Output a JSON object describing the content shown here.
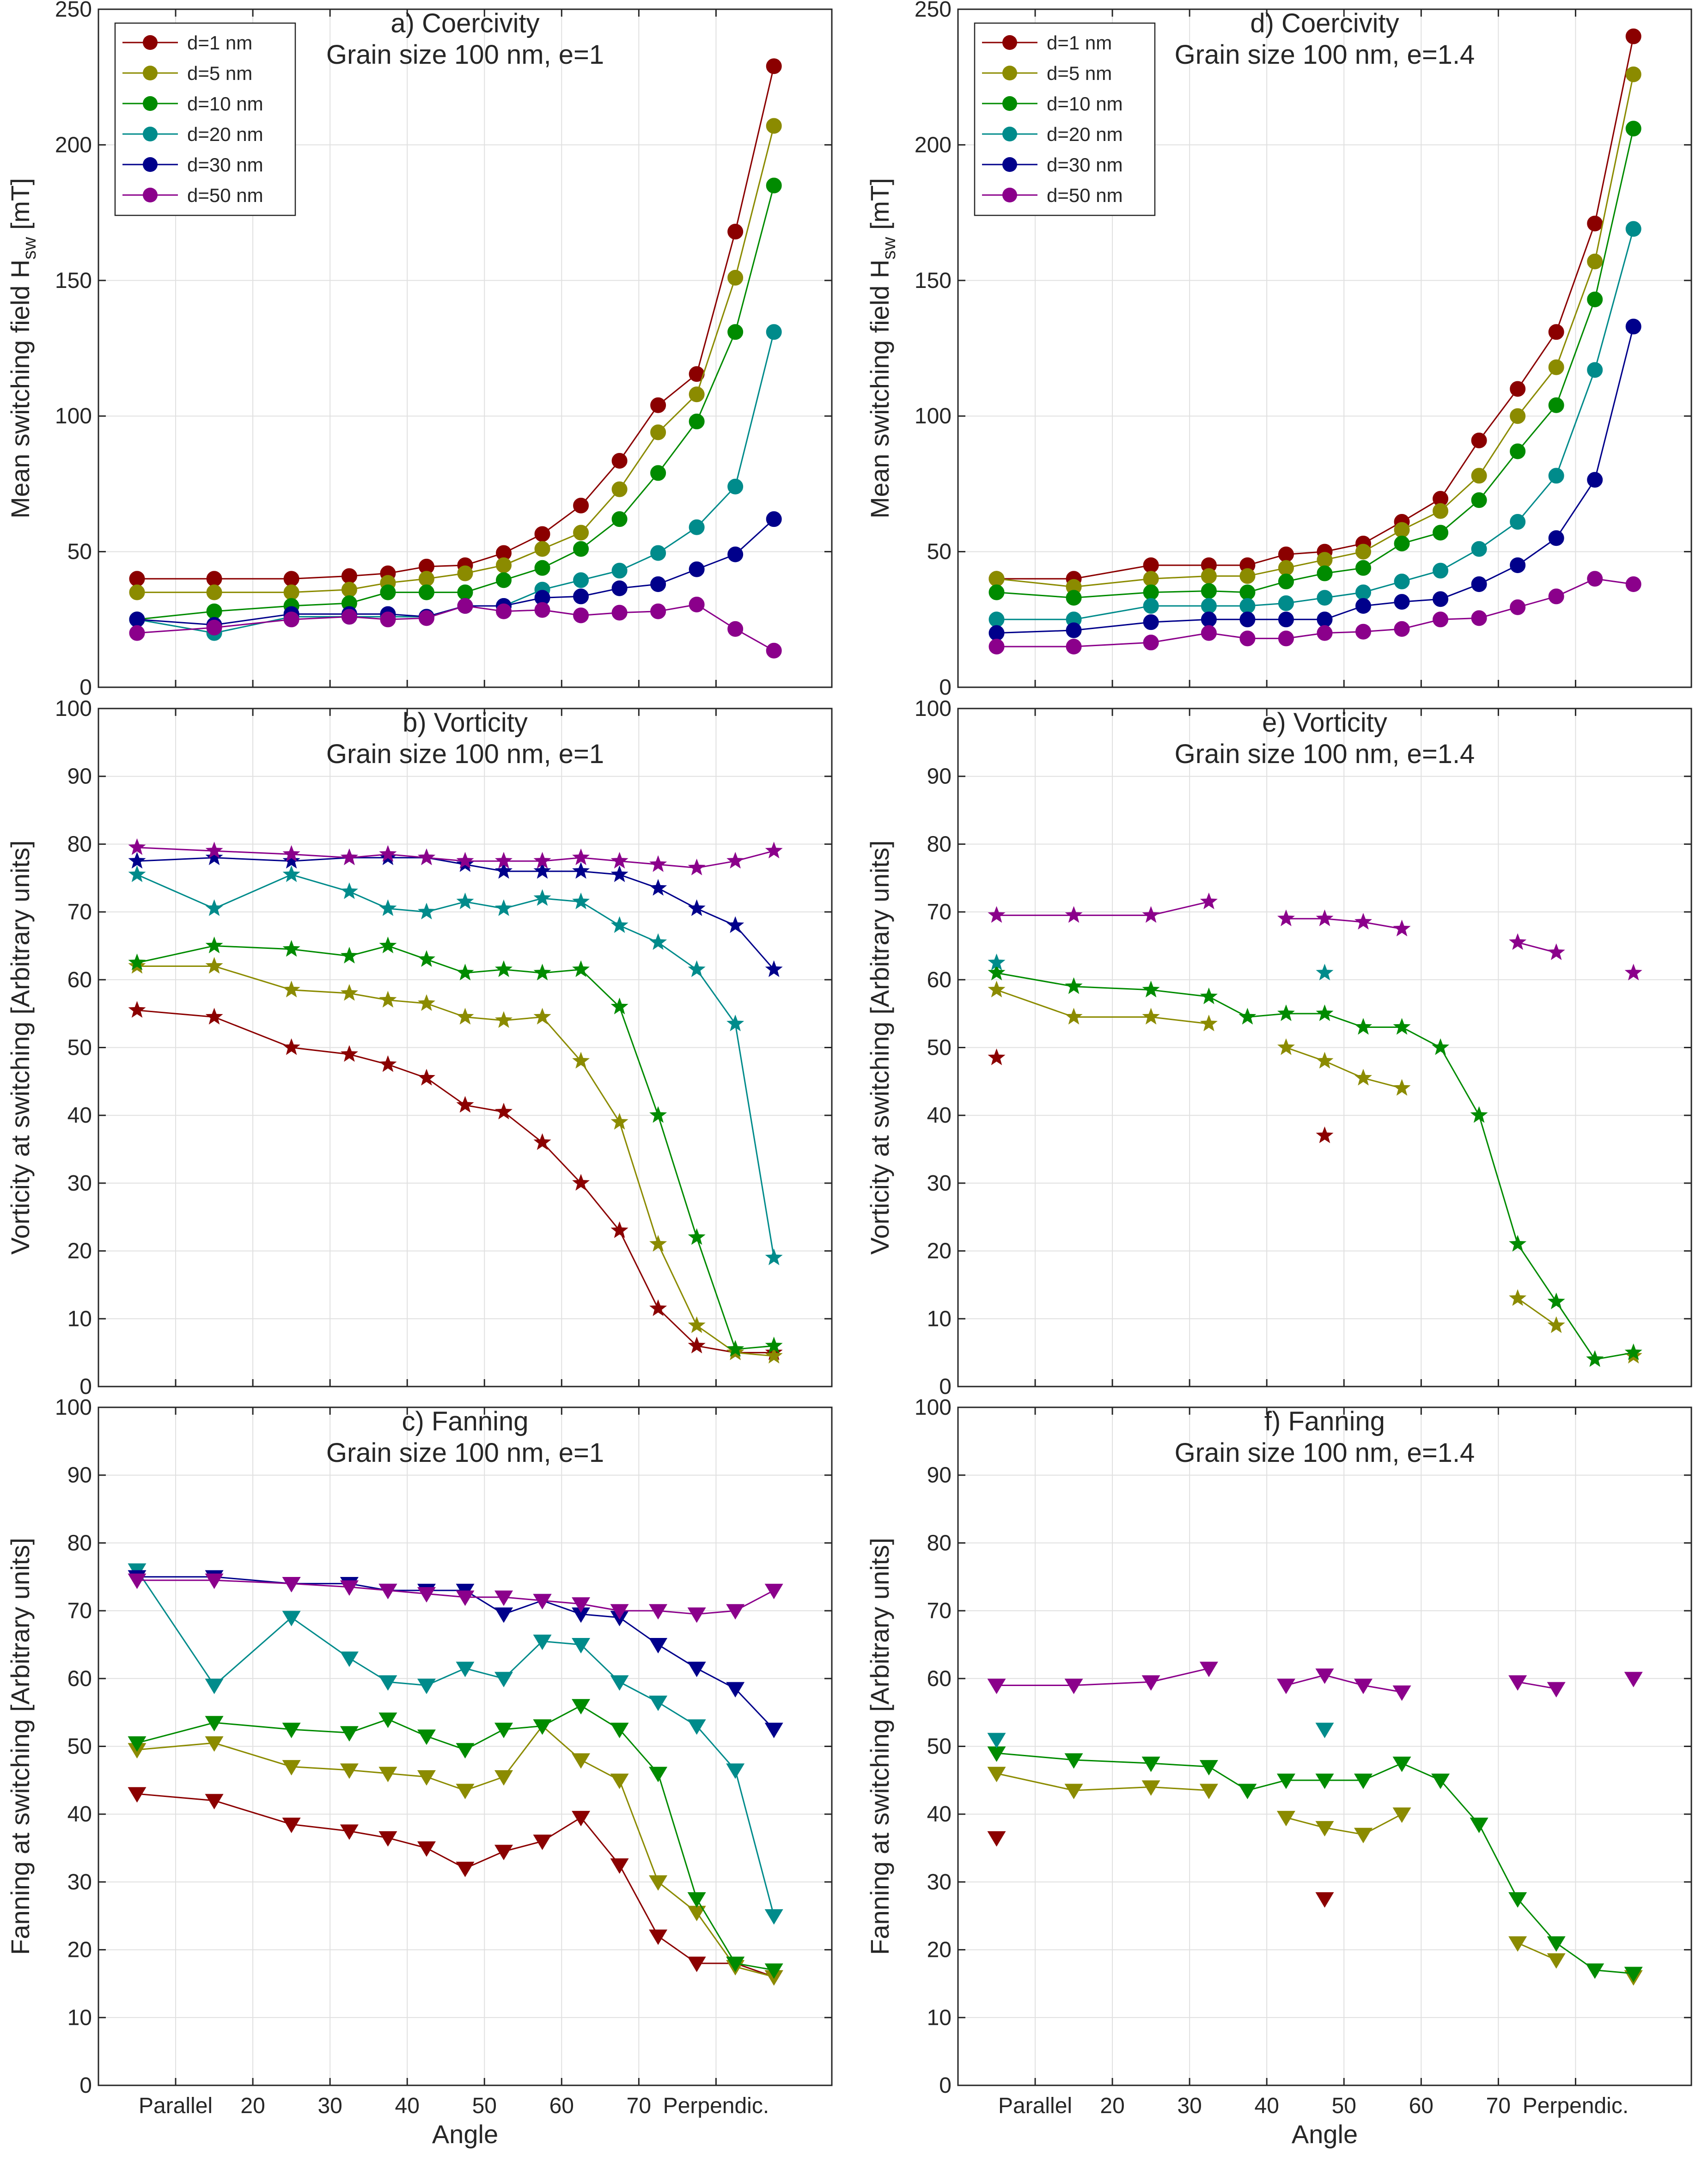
{
  "colors": {
    "d1": "#8b0000",
    "d5": "#8b8b00",
    "d10": "#008b00",
    "d20": "#008b8b",
    "d30": "#00008b",
    "d50": "#8b008b"
  },
  "x_tick_labels": [
    "Parallel",
    "20",
    "30",
    "40",
    "50",
    "60",
    "70",
    "Perpendic."
  ],
  "legend_entries": [
    "d=1 nm",
    "d=5 nm",
    "d=10 nm",
    "d=20 nm",
    "d=30 nm",
    "d=50 nm"
  ],
  "chart_data": [
    {
      "id": "a",
      "type": "line",
      "marker": "circle",
      "title": "a) Coercivity",
      "subtitle": "Grain size 100 nm, e=1",
      "xlabel": "",
      "ylabel": "Mean switching field H_sw [mT]",
      "ylim": [
        0,
        250
      ],
      "yticks": [
        0,
        50,
        100,
        150,
        200,
        250
      ],
      "xlim": [
        0,
        95
      ],
      "x_tick_values": [
        10,
        20,
        30,
        40,
        50,
        60,
        70,
        80
      ],
      "grid": true,
      "legend": "top-left",
      "x": [
        5,
        15,
        25,
        32.5,
        37.5,
        42.5,
        47.5,
        52.5,
        57.5,
        62.5,
        67.5,
        72.5,
        77.5,
        82.5,
        87.5
      ],
      "series": [
        {
          "name": "d=1 nm",
          "values": [
            40,
            40,
            40,
            41,
            42,
            44.5,
            45,
            49.5,
            56.5,
            67,
            83.5,
            104,
            115.5,
            168,
            229
          ]
        },
        {
          "name": "d=5 nm",
          "values": [
            35,
            35,
            35,
            36,
            38.5,
            40,
            42,
            45,
            51,
            57,
            73,
            94,
            108,
            151,
            207
          ]
        },
        {
          "name": "d=10 nm",
          "values": [
            25,
            28,
            30,
            31,
            35,
            35,
            35,
            39.5,
            44,
            51,
            62,
            79,
            98,
            131,
            185
          ]
        },
        {
          "name": "d=20 nm",
          "values": [
            25,
            20,
            26,
            26,
            26,
            26,
            30,
            30,
            36,
            39.5,
            43,
            49.5,
            59,
            74,
            131
          ]
        },
        {
          "name": "d=30 nm",
          "values": [
            25,
            23,
            27,
            27,
            27,
            26,
            30,
            30,
            33,
            33.5,
            36.5,
            38,
            43.5,
            49,
            62
          ]
        },
        {
          "name": "d=50 nm",
          "values": [
            20,
            22,
            25,
            26,
            25,
            25.5,
            30,
            28,
            28.5,
            26.5,
            27.5,
            28,
            30.5,
            21.5,
            13.5
          ]
        }
      ]
    },
    {
      "id": "d",
      "type": "line",
      "marker": "circle",
      "title": "d) Coercivity",
      "subtitle": "Grain size 100 nm, e=1.4",
      "xlabel": "",
      "ylabel": "Mean switching field H_sw [mT]",
      "ylim": [
        0,
        250
      ],
      "yticks": [
        0,
        50,
        100,
        150,
        200,
        250
      ],
      "xlim": [
        0,
        95
      ],
      "x_tick_values": [
        10,
        20,
        30,
        40,
        50,
        60,
        70,
        80
      ],
      "grid": true,
      "legend": "top-left",
      "x": [
        5,
        15,
        25,
        32.5,
        37.5,
        42.5,
        47.5,
        52.5,
        57.5,
        62.5,
        67.5,
        72.5,
        77.5,
        82.5,
        87.5
      ],
      "series": [
        {
          "name": "d=1 nm",
          "values": [
            40,
            40,
            45,
            45,
            45,
            49,
            50,
            53,
            61,
            69.5,
            91,
            110,
            131,
            171,
            240
          ]
        },
        {
          "name": "d=5 nm",
          "values": [
            40,
            37,
            40,
            41,
            41,
            44,
            47,
            50,
            58,
            65,
            78,
            100,
            118,
            157,
            226
          ]
        },
        {
          "name": "d=10 nm",
          "values": [
            35,
            33,
            35,
            35.5,
            35,
            39,
            42,
            44,
            53,
            57,
            69,
            87,
            104,
            143,
            206
          ]
        },
        {
          "name": "d=20 nm",
          "values": [
            25,
            25,
            30,
            30,
            30,
            31,
            33,
            35,
            39,
            43,
            51,
            61,
            78,
            117,
            169
          ]
        },
        {
          "name": "d=30 nm",
          "values": [
            20,
            21,
            24,
            25,
            25,
            25,
            25,
            30,
            31.5,
            32.5,
            38,
            45,
            55,
            76.5,
            133
          ]
        },
        {
          "name": "d=50 nm",
          "values": [
            15,
            15,
            16.5,
            20,
            18,
            18,
            20,
            20.5,
            21.5,
            25,
            25.5,
            29.5,
            33.5,
            40,
            38
          ]
        }
      ]
    },
    {
      "id": "b",
      "type": "line",
      "marker": "star",
      "title": "b) Vorticity",
      "subtitle": "Grain size 100 nm, e=1",
      "xlabel": "",
      "ylabel": "Vorticity at switching [Arbitrary units]",
      "ylim": [
        0,
        100
      ],
      "yticks": [
        0,
        10,
        20,
        30,
        40,
        50,
        60,
        70,
        80,
        90,
        100
      ],
      "xlim": [
        0,
        95
      ],
      "x_tick_values": [
        10,
        20,
        30,
        40,
        50,
        60,
        70,
        80
      ],
      "grid": true,
      "x": [
        5,
        15,
        25,
        32.5,
        37.5,
        42.5,
        47.5,
        52.5,
        57.5,
        62.5,
        67.5,
        72.5,
        77.5,
        82.5,
        87.5
      ],
      "series": [
        {
          "name": "d=1 nm",
          "values": [
            55.5,
            54.5,
            50,
            49,
            47.5,
            45.5,
            41.5,
            40.5,
            36,
            30,
            23,
            11.5,
            6,
            5,
            5
          ]
        },
        {
          "name": "d=5 nm",
          "values": [
            62,
            62,
            58.5,
            58,
            57,
            56.5,
            54.5,
            54,
            54.5,
            48,
            39,
            21,
            9,
            5,
            4.5
          ]
        },
        {
          "name": "d=10 nm",
          "values": [
            62.5,
            65,
            64.5,
            63.5,
            65,
            63,
            61,
            61.5,
            61,
            61.5,
            56,
            40,
            22,
            5.5,
            6
          ]
        },
        {
          "name": "d=20 nm",
          "values": [
            75.5,
            70.5,
            75.5,
            73,
            70.5,
            70,
            71.5,
            70.5,
            72,
            71.5,
            68,
            65.5,
            61.5,
            53.5,
            19
          ]
        },
        {
          "name": "d=30 nm",
          "values": [
            77.5,
            78,
            77.5,
            78,
            78,
            78,
            77,
            76,
            76,
            76,
            75.5,
            73.5,
            70.5,
            68,
            61.5
          ]
        },
        {
          "name": "d=50 nm",
          "values": [
            79.5,
            79,
            78.5,
            78,
            78.5,
            78,
            77.5,
            77.5,
            77.5,
            78,
            77.5,
            77,
            76.5,
            77.5,
            79
          ]
        }
      ]
    },
    {
      "id": "e",
      "type": "line",
      "marker": "star",
      "title": "e) Vorticity",
      "subtitle": "Grain size 100 nm, e=1.4",
      "xlabel": "",
      "ylabel": "Vorticity at switching [Arbitrary units]",
      "ylim": [
        0,
        100
      ],
      "yticks": [
        0,
        10,
        20,
        30,
        40,
        50,
        60,
        70,
        80,
        90,
        100
      ],
      "xlim": [
        0,
        95
      ],
      "x_tick_values": [
        10,
        20,
        30,
        40,
        50,
        60,
        70,
        80
      ],
      "grid": true,
      "x": [
        5,
        15,
        25,
        32.5,
        37.5,
        42.5,
        47.5,
        52.5,
        57.5,
        62.5,
        67.5,
        72.5,
        77.5,
        82.5,
        87.5
      ],
      "series": [
        {
          "name": "d=1 nm",
          "values": [
            48.5,
            null,
            null,
            null,
            null,
            null,
            37,
            null,
            null,
            null,
            null,
            null,
            null,
            null,
            null
          ]
        },
        {
          "name": "d=5 nm",
          "values": [
            58.5,
            54.5,
            54.5,
            53.5,
            null,
            50,
            48,
            45.5,
            44,
            null,
            null,
            13,
            9,
            null,
            4.5
          ]
        },
        {
          "name": "d=10 nm",
          "values": [
            61,
            59,
            58.5,
            57.5,
            54.5,
            55,
            55,
            53,
            53,
            50,
            40,
            21,
            12.5,
            4,
            5
          ]
        },
        {
          "name": "d=20 nm",
          "values": [
            62.5,
            null,
            null,
            null,
            null,
            null,
            61,
            null,
            null,
            null,
            null,
            null,
            null,
            null,
            null
          ]
        },
        {
          "name": "d=30 nm",
          "values": [
            null,
            null,
            null,
            null,
            null,
            null,
            null,
            null,
            null,
            null,
            null,
            null,
            null,
            null,
            null
          ]
        },
        {
          "name": "d=50 nm",
          "values": [
            69.5,
            69.5,
            69.5,
            71.5,
            null,
            69,
            69,
            68.5,
            67.5,
            null,
            null,
            65.5,
            64,
            null,
            61
          ]
        }
      ]
    },
    {
      "id": "c",
      "type": "line",
      "marker": "triangle-down",
      "title": "c) Fanning",
      "subtitle": "Grain size 100 nm, e=1",
      "xlabel": "Angle",
      "ylabel": "Fanning at switching [Arbitrary units]",
      "ylim": [
        0,
        100
      ],
      "yticks": [
        0,
        10,
        20,
        30,
        40,
        50,
        60,
        70,
        80,
        90,
        100
      ],
      "xlim": [
        0,
        95
      ],
      "x_tick_values": [
        10,
        20,
        30,
        40,
        50,
        60,
        70,
        80
      ],
      "grid": true,
      "x": [
        5,
        15,
        25,
        32.5,
        37.5,
        42.5,
        47.5,
        52.5,
        57.5,
        62.5,
        67.5,
        72.5,
        77.5,
        82.5,
        87.5
      ],
      "series": [
        {
          "name": "d=1 nm",
          "values": [
            43,
            42,
            38.5,
            37.5,
            36.5,
            35,
            32,
            34.5,
            36,
            39.5,
            32.5,
            22,
            18,
            18,
            16
          ]
        },
        {
          "name": "d=5 nm",
          "values": [
            49.5,
            50.5,
            47,
            46.5,
            46,
            45.5,
            43.5,
            45.5,
            53,
            48,
            45,
            30,
            25.5,
            17.5,
            16
          ]
        },
        {
          "name": "d=10 nm",
          "values": [
            50.5,
            53.5,
            52.5,
            52,
            54,
            51.5,
            49.5,
            52.5,
            53,
            56,
            52.5,
            46,
            27.5,
            18,
            17
          ]
        },
        {
          "name": "d=20 nm",
          "values": [
            76,
            59,
            69,
            63,
            59.5,
            59,
            61.5,
            60,
            65.5,
            65,
            59.5,
            56.5,
            53,
            46.5,
            25
          ]
        },
        {
          "name": "d=30 nm",
          "values": [
            75,
            75,
            74,
            74,
            73,
            73,
            73,
            69.5,
            71.5,
            69.5,
            69,
            65,
            61.5,
            58.5,
            52.5
          ]
        },
        {
          "name": "d=50 nm",
          "values": [
            74.5,
            74.5,
            74,
            73.5,
            73,
            72.5,
            72,
            72,
            71.5,
            71,
            70,
            70,
            69.5,
            70,
            73
          ]
        }
      ]
    },
    {
      "id": "f",
      "type": "line",
      "marker": "triangle-down",
      "title": "f) Fanning",
      "subtitle": "Grain size 100 nm, e=1.4",
      "xlabel": "Angle",
      "ylabel": "Fanning at switching [Arbitrary units]",
      "ylim": [
        0,
        100
      ],
      "yticks": [
        0,
        10,
        20,
        30,
        40,
        50,
        60,
        70,
        80,
        90,
        100
      ],
      "xlim": [
        0,
        95
      ],
      "x_tick_values": [
        10,
        20,
        30,
        40,
        50,
        60,
        70,
        80
      ],
      "grid": true,
      "x": [
        5,
        15,
        25,
        32.5,
        37.5,
        42.5,
        47.5,
        52.5,
        57.5,
        62.5,
        67.5,
        72.5,
        77.5,
        82.5,
        87.5
      ],
      "series": [
        {
          "name": "d=1 nm",
          "values": [
            36.5,
            null,
            null,
            null,
            null,
            null,
            27.5,
            null,
            null,
            null,
            null,
            null,
            null,
            null,
            null
          ]
        },
        {
          "name": "d=5 nm",
          "values": [
            46,
            43.5,
            44,
            43.5,
            null,
            39.5,
            38,
            37,
            40,
            null,
            null,
            21,
            18.5,
            null,
            16
          ]
        },
        {
          "name": "d=10 nm",
          "values": [
            49,
            48,
            47.5,
            47,
            43.5,
            45,
            45,
            45,
            47.5,
            45,
            38.5,
            27.5,
            21,
            17,
            16.5
          ]
        },
        {
          "name": "d=20 nm",
          "values": [
            51,
            null,
            null,
            null,
            null,
            null,
            52.5,
            null,
            null,
            null,
            null,
            null,
            null,
            null,
            null
          ]
        },
        {
          "name": "d=30 nm",
          "values": [
            null,
            null,
            null,
            null,
            null,
            null,
            null,
            null,
            null,
            null,
            null,
            null,
            null,
            null,
            null
          ]
        },
        {
          "name": "d=50 nm",
          "values": [
            59,
            59,
            59.5,
            61.5,
            null,
            59,
            60.5,
            59,
            58,
            null,
            null,
            59.5,
            58.5,
            null,
            60
          ]
        }
      ]
    }
  ]
}
